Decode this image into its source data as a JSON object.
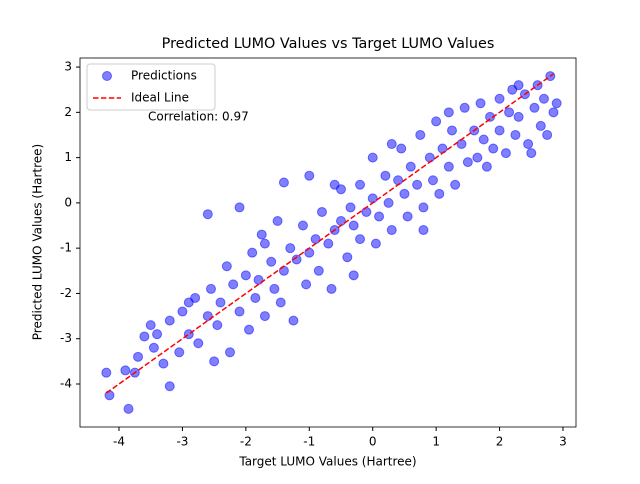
{
  "chart_data": {
    "type": "scatter",
    "title": "Predicted LUMO Values vs Target LUMO Values",
    "x_label": "Target LUMO Values (Hartree)",
    "y_label": "Predicted LUMO Values (Hartree)",
    "annotation": "Correlation: 0.97",
    "legend": "upper left",
    "xlim": [
      -4.615,
      3.205
    ],
    "ylim": [
      -4.95,
      3.2
    ],
    "xticks": [
      -4,
      -3,
      -2,
      -1,
      0,
      1,
      2,
      3
    ],
    "yticks": [
      -4,
      -3,
      -2,
      -1,
      0,
      1,
      2,
      3
    ],
    "series": [
      {
        "name": "Predictions",
        "color": "#0000ff",
        "type": "scatter",
        "x": [
          -4.2,
          -4.15,
          -3.85,
          -3.9,
          -3.75,
          -3.7,
          -3.6,
          -3.5,
          -3.45,
          -3.3,
          -3.2,
          -3.2,
          -3.05,
          -3.0,
          -2.9,
          -2.8,
          -2.75,
          -2.6,
          -2.6,
          -2.55,
          -2.5,
          -2.45,
          -2.4,
          -2.3,
          -2.25,
          -2.2,
          -2.1,
          -2.1,
          -2.0,
          -1.95,
          -1.9,
          -1.85,
          -1.8,
          -1.75,
          -1.7,
          -1.6,
          -1.55,
          -1.5,
          -1.45,
          -1.4,
          -1.4,
          -1.3,
          -1.25,
          -1.2,
          -1.1,
          -1.05,
          -1.0,
          -1.0,
          -0.9,
          -0.85,
          -0.8,
          -0.7,
          -0.65,
          -0.6,
          -0.5,
          -0.5,
          -0.4,
          -0.35,
          -0.3,
          -0.2,
          -0.2,
          -0.1,
          0.0,
          0.0,
          0.05,
          0.1,
          0.2,
          0.25,
          0.3,
          0.4,
          0.45,
          0.5,
          0.55,
          0.6,
          0.7,
          0.75,
          0.8,
          0.9,
          0.95,
          1.0,
          1.05,
          1.1,
          1.2,
          1.25,
          1.3,
          1.4,
          1.45,
          1.5,
          1.6,
          1.65,
          1.7,
          1.75,
          1.8,
          1.85,
          1.9,
          2.0,
          2.0,
          2.1,
          2.15,
          2.2,
          2.25,
          2.3,
          2.4,
          2.45,
          2.5,
          2.55,
          2.6,
          2.65,
          2.7,
          2.75,
          2.8,
          2.85,
          2.9,
          2.3,
          1.2,
          0.3,
          -0.6,
          -1.7,
          -2.9,
          -3.4,
          -0.3,
          0.8
        ],
        "values": [
          -3.75,
          -4.25,
          -4.55,
          -3.7,
          -3.75,
          -3.4,
          -2.95,
          -2.7,
          -3.2,
          -3.55,
          -4.05,
          -2.6,
          -3.3,
          -2.4,
          -2.9,
          -2.1,
          -3.1,
          -0.25,
          -2.5,
          -1.9,
          -3.5,
          -2.7,
          -2.2,
          -1.4,
          -3.3,
          -1.8,
          -0.1,
          -2.4,
          -1.6,
          -2.8,
          -1.1,
          -2.1,
          -1.7,
          -0.7,
          -2.5,
          -1.3,
          -1.9,
          -0.4,
          -2.2,
          0.45,
          -1.5,
          -1.0,
          -2.6,
          -1.25,
          -0.5,
          -1.8,
          0.6,
          -1.1,
          -0.8,
          -1.5,
          -0.2,
          -0.9,
          -1.9,
          -0.6,
          0.3,
          -0.4,
          -1.2,
          -0.1,
          -0.5,
          0.4,
          -0.8,
          -0.2,
          1.0,
          0.1,
          -0.9,
          -0.3,
          0.6,
          0.0,
          -0.6,
          0.5,
          1.2,
          0.2,
          -0.3,
          0.8,
          0.4,
          1.5,
          -0.1,
          1.0,
          0.5,
          1.8,
          0.2,
          1.2,
          0.8,
          1.6,
          0.4,
          1.3,
          2.1,
          0.9,
          1.6,
          1.0,
          2.2,
          1.4,
          0.8,
          1.9,
          1.2,
          2.3,
          1.6,
          1.1,
          2.0,
          2.5,
          1.5,
          1.9,
          2.4,
          1.3,
          1.1,
          2.1,
          2.6,
          1.7,
          2.3,
          1.5,
          2.8,
          2.0,
          2.2,
          2.6,
          2.0,
          1.3,
          0.4,
          -0.9,
          -2.2,
          -2.9,
          -1.6,
          -0.6
        ]
      },
      {
        "name": "Ideal Line",
        "color": "#ff0000",
        "type": "line",
        "x": [
          -4.2,
          2.85
        ],
        "values": [
          -4.2,
          2.85
        ]
      }
    ]
  }
}
